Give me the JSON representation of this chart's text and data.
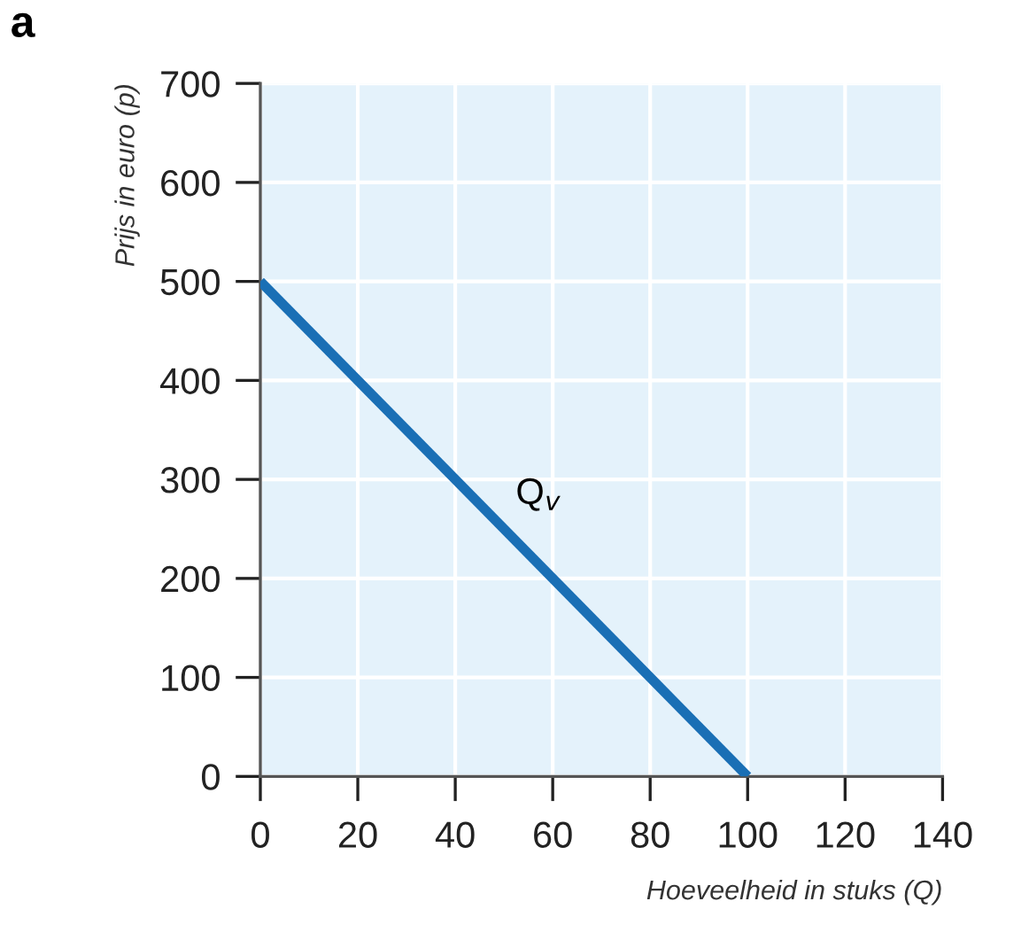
{
  "chart_data": {
    "type": "line",
    "title": "a",
    "xlabel": "Hoeveelheid in stuks (Q)",
    "ylabel": "Prijs in euro (p)",
    "series": [
      {
        "name": "Q$_{v}$",
        "x": [
          0,
          100
        ],
        "values": [
          500,
          0
        ],
        "color": "#1a6fb5"
      }
    ],
    "xlim": [
      0,
      140
    ],
    "ylim": [
      0,
      700
    ],
    "xticks": [
      0,
      20,
      40,
      60,
      80,
      100,
      120,
      140
    ],
    "yticks": [
      0,
      100,
      200,
      300,
      400,
      500,
      600,
      700
    ],
    "grid": true,
    "marker": "none",
    "line_style": "solid"
  }
}
